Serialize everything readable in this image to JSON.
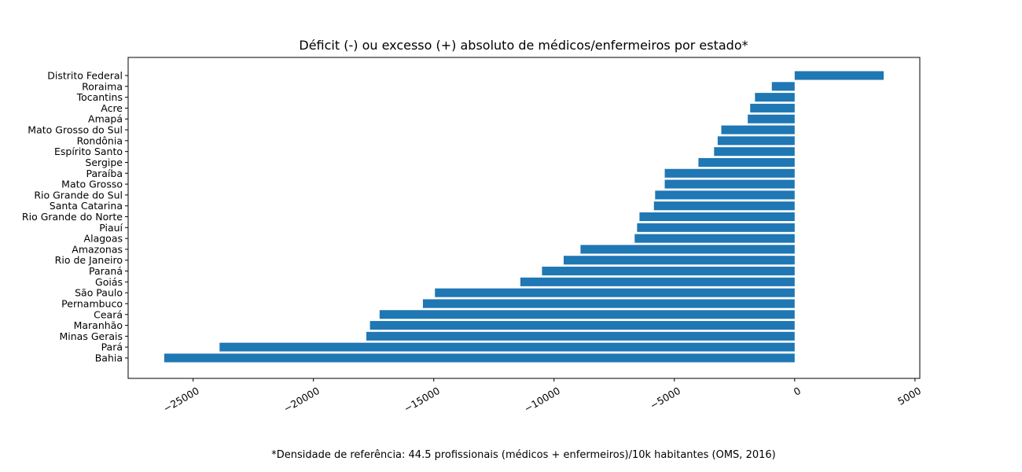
{
  "chart_data": {
    "type": "bar",
    "orientation": "horizontal",
    "title": "Déficit (-) ou excesso (+) absoluto de médicos/enfermeiros por estado*",
    "xlabel": "",
    "ylabel": "",
    "xlim": [
      -27700,
      5200
    ],
    "x_ticks": [
      -25000,
      -20000,
      -15000,
      -10000,
      -5000,
      0,
      5000
    ],
    "x_tick_labels": [
      "−25000",
      "−20000",
      "−15000",
      "−10000",
      "−5000",
      "0",
      "5000"
    ],
    "grid": false,
    "bar_color": "#1f77b4",
    "categories": [
      "Bahia",
      "Pará",
      "Minas Gerais",
      "Maranhão",
      "Ceará",
      "Pernambuco",
      "São Paulo",
      "Goiás",
      "Paraná",
      "Rio de Janeiro",
      "Amazonas",
      "Alagoas",
      "Piauí",
      "Rio Grande do Norte",
      "Santa Catarina",
      "Rio Grande do Sul",
      "Mato Grosso",
      "Paraíba",
      "Sergipe",
      "Espírito Santo",
      "Rondônia",
      "Mato Grosso do Sul",
      "Amapá",
      "Acre",
      "Tocantins",
      "Roraima",
      "Distrito Federal"
    ],
    "values": [
      -26200,
      -23900,
      -17800,
      -17650,
      -17250,
      -15450,
      -14950,
      -11400,
      -10500,
      -9600,
      -8900,
      -6650,
      -6550,
      -6450,
      -5850,
      -5800,
      -5400,
      -5400,
      -4000,
      -3350,
      -3200,
      -3050,
      -1950,
      -1850,
      -1650,
      -950,
      3700
    ],
    "footnote": "*Densidade de referência: 44.5 profissionais (médicos + enfermeiros)/10k habitantes (OMS, 2016)"
  }
}
